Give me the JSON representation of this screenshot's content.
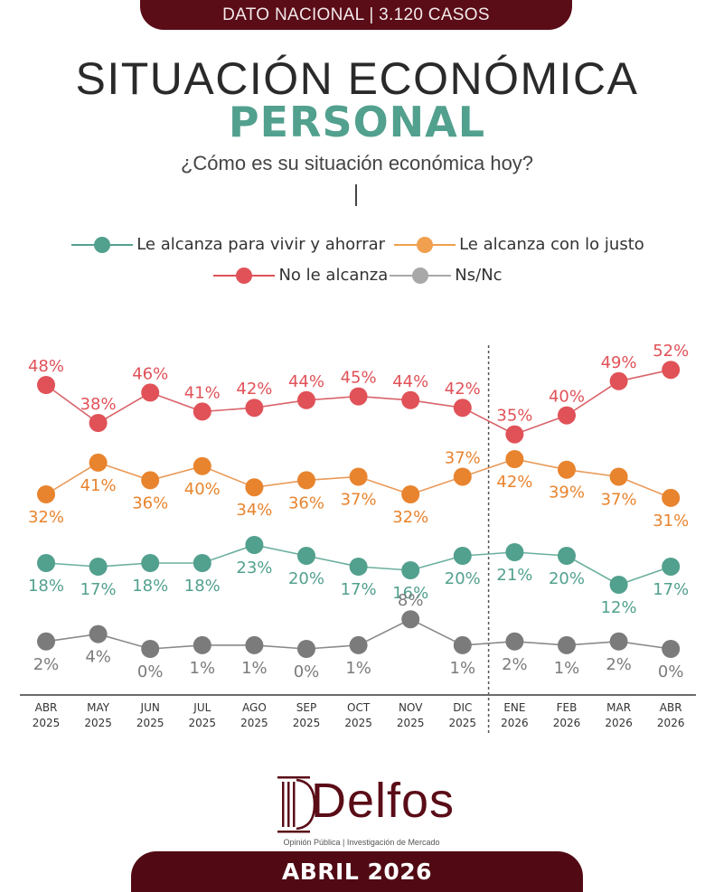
{
  "header": {
    "banner": "DATO NACIONAL | 3.120 CASOS",
    "title": "SITUACIÓN ECONÓMICA",
    "title_accent": "PERSONAL",
    "question": "¿Cómo es su situación económica hoy?"
  },
  "colors": {
    "brand": "#5a0c17",
    "ahorrar": "#52a08e",
    "justo": "#e8842e",
    "no_alcanza": "#e05258",
    "nsnc": "#7b7b7b"
  },
  "chart_data": {
    "type": "line",
    "title": "SITUACIÓN ECONÓMICA PERSONAL",
    "subtitle": "¿Cómo es su situación económica hoy?",
    "xlabel": "",
    "ylabel": "",
    "grid": false,
    "legend_position": "top",
    "x": [
      "ABR 2025",
      "MAY 2025",
      "JUN 2025",
      "JUL 2025",
      "AGO 2025",
      "SEP 2025",
      "OCT 2025",
      "NOV 2025",
      "DIC 2025",
      "ENE 2026",
      "FEB 2026",
      "MAR 2026",
      "ABR 2026"
    ],
    "x_top": [
      "ABR",
      "MAY",
      "JUN",
      "JUL",
      "AGO",
      "SEP",
      "OCT",
      "NOV",
      "DIC",
      "ENE",
      "FEB",
      "MAR",
      "ABR"
    ],
    "x_bottom": [
      "2025",
      "2025",
      "2025",
      "2025",
      "2025",
      "2025",
      "2025",
      "2025",
      "2025",
      "2026",
      "2026",
      "2026",
      "2026"
    ],
    "divider_after": "DIC 2025",
    "unit": "%",
    "series": [
      {
        "key": "no_alcanza",
        "name": "No le alcanza",
        "color": "#e05258",
        "label_pos": [
          "above",
          "above",
          "above",
          "above",
          "above",
          "above",
          "above",
          "above",
          "above",
          "above",
          "above",
          "above",
          "above"
        ],
        "values": [
          48,
          38,
          46,
          41,
          42,
          44,
          45,
          44,
          42,
          35,
          40,
          49,
          52
        ]
      },
      {
        "key": "justo",
        "name": "Le alcanza con lo justo",
        "color": "#e8842e",
        "label_pos": [
          "below",
          "below",
          "below",
          "below",
          "below",
          "below",
          "below",
          "below",
          "above",
          "below",
          "below",
          "below",
          "below"
        ],
        "values": [
          32,
          41,
          36,
          40,
          34,
          36,
          37,
          32,
          37,
          42,
          39,
          37,
          31
        ]
      },
      {
        "key": "ahorrar",
        "name": "Le alcanza para vivir y ahorrar",
        "color": "#52a08e",
        "label_pos": [
          "below",
          "below",
          "below",
          "below",
          "below",
          "below",
          "below",
          "below",
          "below",
          "below",
          "below",
          "below",
          "below"
        ],
        "values": [
          18,
          17,
          18,
          18,
          23,
          20,
          17,
          16,
          20,
          21,
          20,
          12,
          17
        ]
      },
      {
        "key": "nsnc",
        "name": "Ns/Nc",
        "color": "#7b7b7b",
        "label_pos": [
          "below",
          "below",
          "below",
          "below",
          "below",
          "below",
          "below",
          "above",
          "below",
          "below",
          "below",
          "below",
          "below"
        ],
        "values": [
          2,
          4,
          0,
          1,
          1,
          0,
          1,
          8,
          1,
          2,
          1,
          2,
          0
        ]
      }
    ]
  },
  "legend": [
    {
      "label": "Le alcanza para vivir y ahorrar",
      "color": "#52a08e"
    },
    {
      "label": "Le alcanza con lo justo",
      "color": "#e8842e"
    },
    {
      "label": "No le alcanza",
      "color": "#e05258"
    },
    {
      "label": "Ns/Nc",
      "color": "#a8a8a8"
    }
  ],
  "footer": {
    "logo_name": "Delfos",
    "logo_tagline": "Opinión Pública | Investigación de Mercado",
    "period": "ABRIL 2026"
  }
}
